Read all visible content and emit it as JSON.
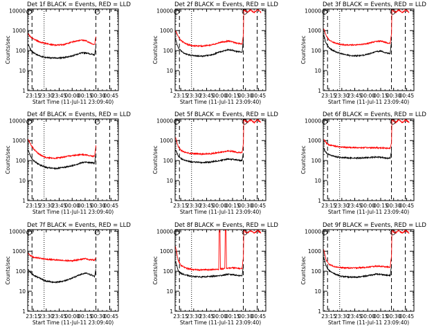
{
  "chart_data": {
    "type": "line",
    "layout": "3x3 grid",
    "x_tick_labels": [
      "23:15",
      "23:30",
      "23:45",
      "00:00",
      "00:15",
      "00:30",
      "00:45"
    ],
    "x_ticks_minutes_after_23_00": [
      15,
      30,
      45,
      60,
      75,
      90,
      105
    ],
    "xlim_minutes_after_23_00": [
      8.5,
      113.5
    ],
    "xlabel": "Start Time (11-Jul-11 23:09:40)",
    "ylabel": "Counts/sec",
    "y_scale": "log",
    "y_tick_labels": [
      "1",
      "10",
      "100",
      "1000",
      "10000"
    ],
    "ylim": [
      1,
      12000
    ],
    "grid": false,
    "legend": "in title",
    "colors": {
      "events": "#000000",
      "lld": "#ff0000",
      "markers": "#000000"
    },
    "series_keys": [
      "events",
      "lld"
    ],
    "vertical_markers": [
      {
        "minutes": 13.5,
        "style": "dashed"
      },
      {
        "minutes": 27.5,
        "style": "dotted"
      },
      {
        "minutes": 87.5,
        "style": "dashed"
      },
      {
        "minutes": 103.5,
        "style": "dashed"
      }
    ],
    "panels": [
      {
        "title": "Det 1f BLACK = Events, RED = LLD",
        "events": {
          "x": [
            9,
            12,
            15,
            20,
            25,
            30,
            40,
            50,
            60,
            70,
            76,
            80,
            86,
            87.5
          ],
          "y": [
            200,
            110,
            80,
            60,
            50,
            45,
            42,
            44,
            55,
            75,
            78,
            70,
            60,
            170
          ]
        },
        "lld": {
          "x": [
            9,
            12,
            15,
            20,
            25,
            30,
            40,
            50,
            60,
            70,
            76,
            80,
            86,
            87.5
          ],
          "y": [
            700,
            480,
            380,
            300,
            250,
            230,
            185,
            200,
            270,
            340,
            310,
            250,
            200,
            520
          ]
        }
      },
      {
        "title": "Det 2f BLACK = Events, RED = LLD",
        "events": {
          "x": [
            9,
            12,
            15,
            20,
            25,
            30,
            40,
            50,
            60,
            70,
            76,
            80,
            86,
            87.5
          ],
          "y": [
            380,
            140,
            100,
            70,
            60,
            55,
            53,
            60,
            85,
            110,
            100,
            90,
            85,
            300
          ]
        },
        "lld": {
          "x": [
            9,
            12,
            15,
            20,
            25,
            30,
            40,
            50,
            60,
            70,
            76,
            80,
            86,
            87.5,
            88,
            92,
            96,
            100,
            104,
            108
          ],
          "y": [
            1050,
            500,
            320,
            230,
            190,
            175,
            170,
            190,
            250,
            300,
            270,
            230,
            215,
            600,
            11000,
            8000,
            11000,
            8000,
            11000,
            8000
          ]
        }
      },
      {
        "title": "Det 3f BLACK = Events, RED = LLD",
        "events": {
          "x": [
            9,
            12,
            15,
            20,
            25,
            30,
            40,
            50,
            60,
            70,
            76,
            80,
            86,
            87.5
          ],
          "y": [
            600,
            220,
            140,
            100,
            80,
            70,
            55,
            55,
            65,
            90,
            95,
            80,
            70,
            280
          ]
        },
        "lld": {
          "x": [
            9,
            12,
            15,
            20,
            25,
            30,
            40,
            50,
            60,
            70,
            76,
            80,
            86,
            87.5,
            88,
            92,
            96,
            100,
            104,
            108
          ],
          "y": [
            1300,
            550,
            340,
            260,
            220,
            200,
            190,
            195,
            230,
            290,
            300,
            260,
            230,
            700,
            11000,
            8000,
            11000,
            8000,
            11000,
            8000
          ]
        }
      },
      {
        "title": "Det 4f BLACK = Events, RED = LLD",
        "events": {
          "x": [
            9,
            12,
            15,
            20,
            25,
            30,
            40,
            50,
            60,
            70,
            76,
            80,
            86,
            87.5
          ],
          "y": [
            350,
            160,
            100,
            70,
            55,
            45,
            40,
            45,
            55,
            75,
            85,
            80,
            75,
            220
          ]
        },
        "lld": {
          "x": [
            9,
            12,
            15,
            20,
            25,
            30,
            40,
            50,
            60,
            70,
            76,
            80,
            86,
            87.5
          ],
          "y": [
            1100,
            650,
            400,
            240,
            170,
            140,
            130,
            150,
            180,
            200,
            190,
            175,
            165,
            550
          ]
        }
      },
      {
        "title": "Det 5f BLACK = Events, RED = LLD",
        "events": {
          "x": [
            9,
            12,
            15,
            20,
            25,
            30,
            40,
            50,
            60,
            70,
            76,
            80,
            86,
            87.5
          ],
          "y": [
            350,
            170,
            130,
            100,
            90,
            85,
            80,
            85,
            100,
            120,
            115,
            105,
            100,
            250
          ]
        },
        "lld": {
          "x": [
            9,
            12,
            15,
            20,
            25,
            30,
            40,
            50,
            60,
            70,
            76,
            80,
            86,
            87.5,
            88,
            92,
            96,
            100,
            104,
            108
          ],
          "y": [
            1400,
            500,
            330,
            260,
            230,
            220,
            210,
            220,
            260,
            300,
            290,
            260,
            250,
            650,
            11000,
            8000,
            11000,
            8000,
            11000,
            8000
          ]
        }
      },
      {
        "title": "Det 6f BLACK = Events, RED = LLD",
        "events": {
          "x": [
            9,
            12,
            15,
            20,
            25,
            30,
            40,
            50,
            60,
            70,
            76,
            80,
            86,
            87.5
          ],
          "y": [
            400,
            250,
            200,
            170,
            150,
            140,
            135,
            135,
            140,
            150,
            145,
            135,
            130,
            300
          ]
        },
        "lld": {
          "x": [
            9,
            12,
            15,
            20,
            25,
            30,
            40,
            50,
            60,
            70,
            76,
            80,
            86,
            87.5,
            88,
            92,
            96,
            100,
            104,
            108
          ],
          "y": [
            1200,
            750,
            620,
            550,
            500,
            470,
            450,
            440,
            440,
            440,
            430,
            420,
            410,
            800,
            11000,
            8000,
            11000,
            8000,
            11000,
            8000
          ]
        }
      },
      {
        "title": "Det 7f BLACK = Events, RED = LLD",
        "events": {
          "x": [
            9,
            12,
            15,
            20,
            25,
            30,
            40,
            50,
            60,
            70,
            76,
            80,
            86,
            87.5
          ],
          "y": [
            120,
            85,
            65,
            50,
            40,
            32,
            28,
            32,
            45,
            70,
            80,
            70,
            55,
            130
          ]
        },
        "lld": {
          "x": [
            9,
            12,
            15,
            20,
            25,
            30,
            40,
            50,
            60,
            70,
            76,
            80,
            86,
            87.5
          ],
          "y": [
            800,
            600,
            500,
            470,
            430,
            400,
            370,
            340,
            330,
            400,
            430,
            380,
            360,
            480
          ]
        }
      },
      {
        "title": "Det 8f BLACK = Events, RED = LLD",
        "events": {
          "x": [
            9,
            12,
            15,
            20,
            25,
            30,
            40,
            50,
            60,
            70,
            76,
            80,
            86,
            87.5
          ],
          "y": [
            300,
            110,
            80,
            65,
            58,
            55,
            52,
            55,
            60,
            70,
            68,
            62,
            60,
            180
          ]
        },
        "lld": {
          "x": [
            9,
            12,
            15,
            20,
            25,
            30,
            40,
            50,
            59,
            59.5,
            60.5,
            61,
            66,
            66.5,
            67.5,
            68,
            76,
            80,
            86,
            87.5,
            88,
            92,
            96,
            100,
            104,
            108
          ],
          "y": [
            1700,
            350,
            200,
            150,
            130,
            120,
            118,
            120,
            125,
            11000,
            11000,
            130,
            135,
            11000,
            11000,
            140,
            150,
            140,
            135,
            500,
            11000,
            8000,
            11000,
            8000,
            11000,
            8000
          ]
        }
      },
      {
        "title": "Det 9f BLACK = Events, RED = LLD",
        "events": {
          "x": [
            9,
            12,
            15,
            20,
            25,
            30,
            40,
            50,
            60,
            70,
            76,
            80,
            86,
            87.5
          ],
          "y": [
            500,
            170,
            110,
            80,
            65,
            55,
            50,
            52,
            60,
            72,
            70,
            65,
            60,
            180
          ]
        },
        "lld": {
          "x": [
            9,
            12,
            15,
            20,
            25,
            30,
            40,
            50,
            60,
            70,
            76,
            80,
            86,
            87.5,
            88,
            92,
            96,
            100,
            104,
            108
          ],
          "y": [
            1200,
            350,
            230,
            180,
            160,
            150,
            145,
            150,
            160,
            180,
            175,
            165,
            160,
            600,
            11000,
            8000,
            11000,
            8000,
            11000,
            8000
          ]
        }
      }
    ]
  }
}
